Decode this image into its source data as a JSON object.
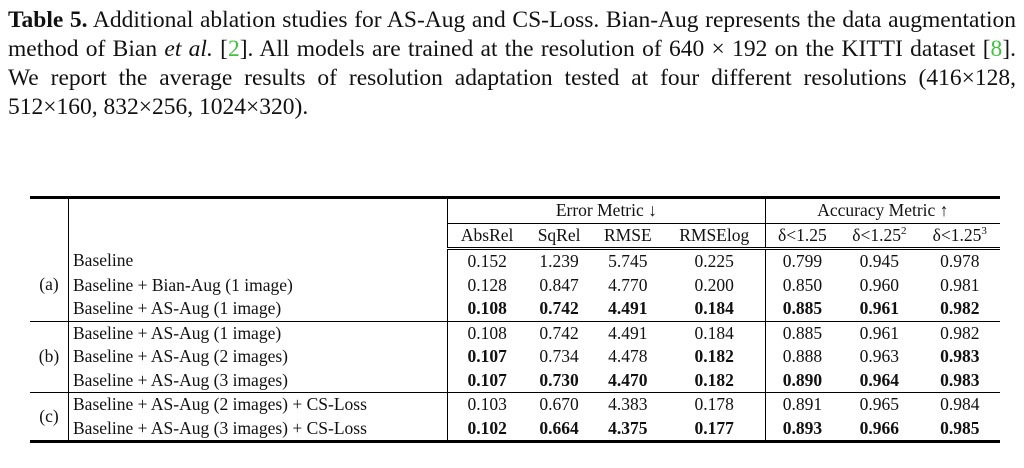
{
  "caption": {
    "label": "Table 5.",
    "text1": " Additional ablation studies for AS-Aug and CS-Loss. Bian-Aug represents the data augmentation method of Bian ",
    "italic": "et al.",
    "text2": " [",
    "cite1": "2",
    "text3": "]. All models are trained at the resolution of 640 × 192 on the KITTI dataset [",
    "cite2": "8",
    "text4": "]. We report the average results of resolution adaptation tested at four different resolutions (416×128, 512×160, 832×256, 1024×320).",
    "cite_color": "#3fc33f"
  },
  "header": {
    "error_group": "Error Metric ↓",
    "accuracy_group": "Accuracy Metric ↑",
    "columns": [
      "AbsRel",
      "SqRel",
      "RMSE",
      "RMSElog",
      "δ<1.25",
      "δ<1.25",
      "δ<1.25"
    ],
    "superscripts": [
      "",
      "",
      "",
      "",
      "",
      "2",
      "3"
    ]
  },
  "groups": [
    {
      "label": "(a)",
      "rows": [
        {
          "method": "Baseline",
          "cells": [
            [
              "0.152",
              0
            ],
            [
              "1.239",
              0
            ],
            [
              "5.745",
              0
            ],
            [
              "0.225",
              0
            ],
            [
              "0.799",
              0
            ],
            [
              "0.945",
              0
            ],
            [
              "0.978",
              0
            ]
          ]
        },
        {
          "method": "Baseline + Bian-Aug (1 image)",
          "cells": [
            [
              "0.128",
              0
            ],
            [
              "0.847",
              0
            ],
            [
              "4.770",
              0
            ],
            [
              "0.200",
              0
            ],
            [
              "0.850",
              0
            ],
            [
              "0.960",
              0
            ],
            [
              "0.981",
              0
            ]
          ]
        },
        {
          "method": "Baseline + AS-Aug (1 image)",
          "cells": [
            [
              "0.108",
              1
            ],
            [
              "0.742",
              1
            ],
            [
              "4.491",
              1
            ],
            [
              "0.184",
              1
            ],
            [
              "0.885",
              1
            ],
            [
              "0.961",
              1
            ],
            [
              "0.982",
              1
            ]
          ]
        }
      ]
    },
    {
      "label": "(b)",
      "rows": [
        {
          "method": "Baseline + AS-Aug (1 image)",
          "cells": [
            [
              "0.108",
              0
            ],
            [
              "0.742",
              0
            ],
            [
              "4.491",
              0
            ],
            [
              "0.184",
              0
            ],
            [
              "0.885",
              0
            ],
            [
              "0.961",
              0
            ],
            [
              "0.982",
              0
            ]
          ]
        },
        {
          "method": "Baseline + AS-Aug (2 images)",
          "cells": [
            [
              "0.107",
              1
            ],
            [
              "0.734",
              0
            ],
            [
              "4.478",
              0
            ],
            [
              "0.182",
              1
            ],
            [
              "0.888",
              0
            ],
            [
              "0.963",
              0
            ],
            [
              "0.983",
              1
            ]
          ]
        },
        {
          "method": "Baseline + AS-Aug (3 images)",
          "cells": [
            [
              "0.107",
              1
            ],
            [
              "0.730",
              1
            ],
            [
              "4.470",
              1
            ],
            [
              "0.182",
              1
            ],
            [
              "0.890",
              1
            ],
            [
              "0.964",
              1
            ],
            [
              "0.983",
              1
            ]
          ]
        }
      ]
    },
    {
      "label": "(c)",
      "rows": [
        {
          "method": "Baseline + AS-Aug (2 images) + CS-Loss",
          "cells": [
            [
              "0.103",
              0
            ],
            [
              "0.670",
              0
            ],
            [
              "4.383",
              0
            ],
            [
              "0.178",
              0
            ],
            [
              "0.891",
              0
            ],
            [
              "0.965",
              0
            ],
            [
              "0.984",
              0
            ]
          ]
        },
        {
          "method": "Baseline + AS-Aug (3 images) + CS-Loss",
          "cells": [
            [
              "0.102",
              1
            ],
            [
              "0.664",
              1
            ],
            [
              "4.375",
              1
            ],
            [
              "0.177",
              1
            ],
            [
              "0.893",
              1
            ],
            [
              "0.966",
              1
            ],
            [
              "0.985",
              1
            ]
          ]
        }
      ]
    }
  ]
}
